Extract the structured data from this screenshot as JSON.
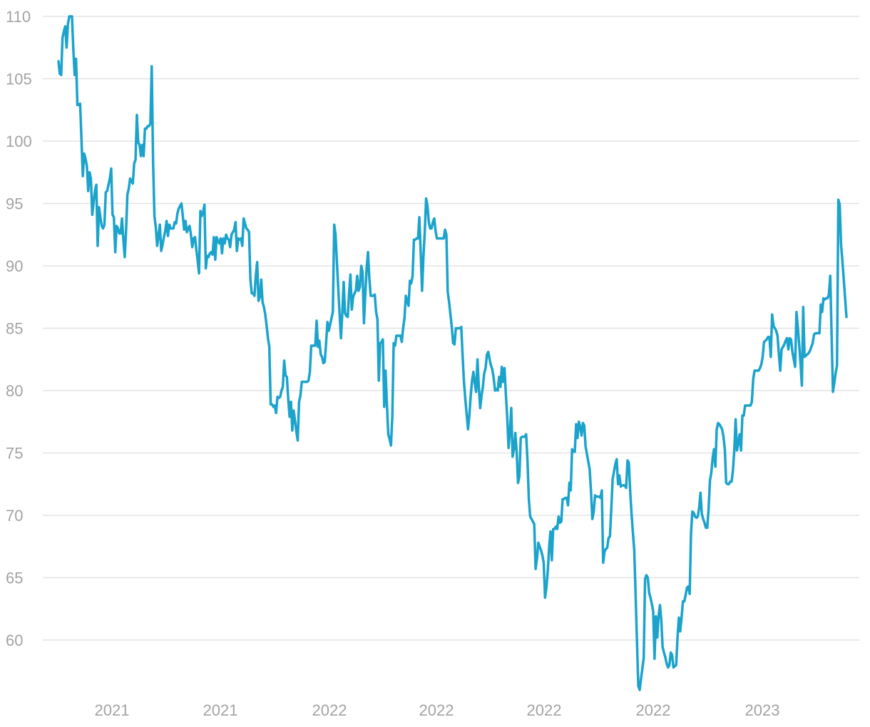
{
  "chart_data": {
    "type": "line",
    "title": "",
    "xlabel": "",
    "ylabel": "",
    "ylim": [
      55.5,
      110
    ],
    "y_ticks": [
      60,
      65,
      70,
      75,
      80,
      85,
      90,
      95,
      100,
      105,
      110
    ],
    "x_tick_labels": [
      "2021",
      "2021",
      "2022",
      "2022",
      "2022",
      "2022",
      "2023"
    ],
    "grid": "horizontal",
    "legend": "none",
    "colors": {
      "series": "#1ba3cc",
      "grid": "#e3e3e3",
      "tick_label": "#a3a3a3"
    },
    "series": [
      {
        "values": [
          106.4,
          105.4,
          105.3,
          108.3,
          108.8,
          109.2,
          107.5,
          109.4,
          110,
          110,
          110,
          107.3,
          105.3,
          106.6,
          102.9,
          102.9,
          103,
          100.2,
          97.2,
          99,
          98.6,
          98,
          96,
          97.5,
          97,
          94.1,
          95.1,
          96,
          96.5,
          91.6,
          94.7,
          93.9,
          93.2,
          93,
          93.3,
          95.9,
          96,
          96.5,
          97,
          97.8,
          94.1,
          93.9,
          91.1,
          93.2,
          93,
          92.6,
          92.6,
          93.8,
          92.1,
          90.7,
          92.8,
          95.7,
          96.2,
          97,
          96.8,
          96.6,
          98.2,
          98.5,
          102.1,
          99.9,
          99.7,
          98.8,
          99.7,
          98.8,
          101,
          101,
          101.2,
          101.2,
          101.4,
          106,
          98.3,
          94,
          93.1,
          91.6,
          92.4,
          93.3,
          91.2,
          91.7,
          92.3,
          92.8,
          93.6,
          92.4,
          93.3,
          93,
          93,
          93,
          93.5,
          93.4,
          94.2,
          94.6,
          94.8,
          95,
          94,
          92.9,
          93.6,
          92.7,
          93,
          93.2,
          92.5,
          91.5,
          92.2,
          92.3,
          91.3,
          90.4,
          89.4,
          94.4,
          94,
          94.3,
          94.9,
          89.8,
          90.8,
          90.7,
          91,
          91.1,
          90.9,
          92.3,
          90.5,
          92.3,
          92,
          91.8,
          92.2,
          91,
          92.2,
          91.8,
          92.5,
          92.2,
          92.1,
          91.5,
          92.5,
          92.7,
          92.9,
          93.5,
          91.2,
          92.2,
          92.1,
          92.2,
          91.6,
          93.8,
          93.4,
          93,
          92.9,
          92.7,
          88.9,
          87.8,
          87.8,
          87.6,
          89.2,
          90.3,
          87.2,
          87.5,
          88.9,
          87.1,
          86.7,
          86.1,
          85.2,
          84.2,
          83.5,
          78.9,
          78.9,
          78.7,
          78.8,
          78.2,
          79.5,
          79.4,
          79.5,
          80,
          80.3,
          82.4,
          81.2,
          81.1,
          79.3,
          77.9,
          79.1,
          76.8,
          78.4,
          77.6,
          76.7,
          76,
          79.1,
          79.6,
          80.7,
          80.7,
          80.7,
          80.7,
          80.7,
          80.8,
          81.5,
          83.6,
          83.6,
          83.6,
          83.6,
          85.6,
          83.5,
          84,
          82.9,
          82.7,
          82.2,
          82.3,
          83.8,
          85.5,
          84.8,
          85.3,
          85.8,
          86.3,
          93.3,
          92.5,
          90.3,
          88.2,
          86.1,
          84.2,
          86.2,
          88.7,
          86.2,
          86,
          85.9,
          87.8,
          89.3,
          86.5,
          87.5,
          87.8,
          88,
          89.2,
          88,
          88.3,
          90,
          89.5,
          85.4,
          87.7,
          89.8,
          91.1,
          89,
          87.6,
          87.6,
          87.6,
          87.7,
          86.3,
          85.7,
          80.8,
          83.8,
          83.9,
          84.1,
          78.7,
          81.6,
          78.9,
          76.5,
          76.1,
          75.6,
          77.9,
          83.8,
          83.6,
          84.4,
          84.4,
          84.4,
          84.4,
          83.9,
          85,
          85.8,
          87.6,
          87.2,
          86.8,
          88.8,
          88.6,
          89.2,
          92.1,
          92.1,
          92.2,
          92.2,
          93.9,
          91.1,
          88,
          90.7,
          92.7,
          95.4,
          94.8,
          93.5,
          93,
          93,
          93.5,
          93.8,
          92.8,
          92.2,
          92.2,
          92.2,
          92.2,
          92.2,
          92.2,
          92.9,
          92.5,
          87.9,
          87.1,
          86.1,
          85.1,
          83.8,
          83.7,
          85,
          85,
          85,
          85,
          85.1,
          82.8,
          80.7,
          79.3,
          78.1,
          76.9,
          78,
          79.6,
          80.8,
          81.5,
          80.6,
          79.9,
          82.5,
          80.3,
          78.6,
          79.6,
          80.3,
          81.4,
          81.8,
          82.9,
          83.1,
          82.5,
          82,
          81.7,
          81,
          80,
          80.1,
          80,
          81.1,
          80.3,
          81.9,
          80.7,
          81.8,
          79.7,
          77.9,
          75.4,
          76.7,
          78.6,
          74.7,
          75.3,
          76.6,
          75.1,
          72.6,
          73.1,
          76.2,
          76.3,
          76.3,
          76.3,
          76.5,
          74.4,
          71.3,
          69.9,
          69.7,
          69.5,
          69.3,
          65.7,
          66.5,
          67.8,
          67.5,
          67.2,
          66.8,
          66.2,
          63.4,
          64.2,
          65.5,
          67.4,
          68.7,
          66.4,
          68.9,
          68.9,
          69.1,
          68.9,
          69.9,
          69.4,
          69.5,
          71.3,
          71.3,
          71.4,
          71.4,
          70.8,
          72.6,
          72,
          75.3,
          75.1,
          75.1,
          77.3,
          76.2,
          77.5,
          77.1,
          76.4,
          77.4,
          77.2,
          75.5,
          74.9,
          74.3,
          73.7,
          71.9,
          69.7,
          70.3,
          71.6,
          71.5,
          71.5,
          71.5,
          71.4,
          72,
          66.2,
          67.1,
          67.3,
          67.4,
          68.2,
          68.3,
          70.5,
          72.9,
          73.5,
          74.1,
          74.5,
          72.5,
          73.2,
          72.3,
          72.4,
          72.4,
          72.4,
          72.2,
          74.4,
          74.2,
          71.9,
          70.1,
          68.6,
          67.2,
          63.6,
          59.9,
          56.3,
          56,
          56.9,
          57.7,
          58.6,
          64.9,
          65.2,
          65,
          63.8,
          63.4,
          62.9,
          62.3,
          58.5,
          61.9,
          60.2,
          61.9,
          62.8,
          61.6,
          59.4,
          59,
          58.6,
          58.1,
          57.8,
          58,
          59,
          58.8,
          57.8,
          57.9,
          58,
          60.2,
          61.8,
          60.7,
          61.8,
          63.1,
          63.1,
          63.6,
          64.2,
          64.3,
          63.7,
          68.6,
          70.3,
          70.2,
          69.9,
          69.8,
          69.9,
          70.6,
          71.8,
          70.1,
          69.7,
          69.4,
          69,
          69,
          70.5,
          72.8,
          73.4,
          74.6,
          75.3,
          73.9,
          76.9,
          77.4,
          77.3,
          77.1,
          76.9,
          76.3,
          75.3,
          72.6,
          72.5,
          72.5,
          72.7,
          72.7,
          73.6,
          75.2,
          77.7,
          75.2,
          75.8,
          76.5,
          75.2,
          78,
          78,
          78.8,
          78.8,
          78.8,
          78.8,
          78.8,
          79.1,
          80.9,
          81.6,
          81.6,
          81.6,
          81.6,
          81.8,
          82.1,
          82.7,
          83.9,
          84,
          84.1,
          84.3,
          84.3,
          82.7,
          86.1,
          85.2,
          85,
          84.8,
          84.4,
          82.9,
          81.6,
          83.3,
          83.5,
          83.7,
          84,
          84.2,
          83.3,
          84.2,
          84.1,
          83.1,
          82.5,
          81.9,
          86.3,
          85.1,
          83.7,
          82.2,
          80.4,
          86.7,
          82.7,
          82.8,
          82.9,
          83,
          83.2,
          83.5,
          83.8,
          84.5,
          84.6,
          84.6,
          84.6,
          84.6,
          86.9,
          86.3,
          87.4,
          87.3,
          87.4,
          87.4,
          87.7,
          89.2,
          84.5,
          79.9,
          80.6,
          81.4,
          82,
          95.3,
          94.9,
          91.7,
          90.4,
          88.9,
          87.4,
          85.9
        ]
      }
    ]
  }
}
